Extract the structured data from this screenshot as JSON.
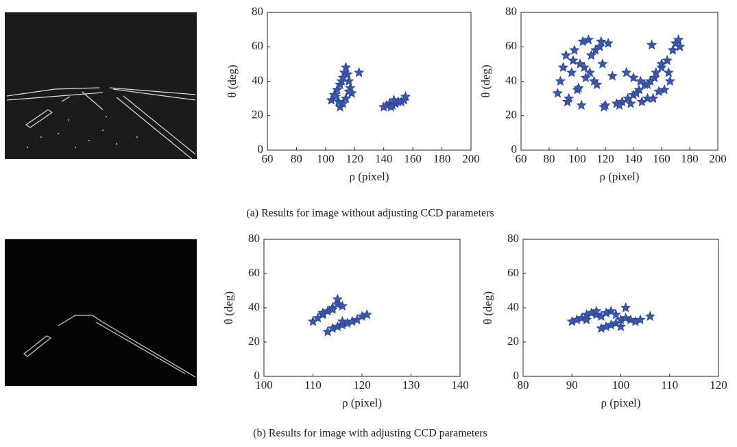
{
  "chart_data": [
    {
      "type": "scatter",
      "x_label": "ρ (pixel)",
      "y_label": "θ (deg)",
      "color": "#3b58a8",
      "xlim": [
        60,
        200
      ],
      "xticks": [
        60,
        80,
        100,
        120,
        140,
        160,
        180,
        200
      ],
      "ylim": [
        0,
        80
      ],
      "yticks": [
        0,
        20,
        40,
        60,
        80
      ],
      "x": [
        104,
        106,
        108,
        110,
        111,
        112,
        113,
        114,
        115,
        116,
        117,
        118,
        110,
        112,
        114,
        116,
        109,
        107,
        123,
        140,
        142,
        144,
        146,
        148,
        150,
        152,
        154,
        155,
        145,
        147
      ],
      "y": [
        29,
        32,
        35,
        38,
        40,
        42,
        45,
        48,
        44,
        40,
        36,
        33,
        25,
        27,
        30,
        34,
        28,
        31,
        45,
        25,
        26,
        27,
        26,
        27,
        28,
        28,
        29,
        31,
        25,
        29
      ]
    },
    {
      "type": "scatter",
      "x_label": "ρ (pixel)",
      "y_label": "θ (deg)",
      "color": "#3b58a8",
      "xlim": [
        60,
        200
      ],
      "xticks": [
        60,
        80,
        100,
        120,
        140,
        160,
        180,
        200
      ],
      "ylim": [
        0,
        80
      ],
      "yticks": [
        0,
        20,
        40,
        60,
        80
      ],
      "x": [
        86,
        88,
        90,
        92,
        94,
        96,
        98,
        100,
        102,
        104,
        106,
        108,
        110,
        112,
        114,
        116,
        118,
        120,
        122,
        125,
        93,
        97,
        101,
        105,
        109,
        113,
        117,
        103,
        119,
        128,
        132,
        136,
        140,
        144,
        148,
        152,
        156,
        160,
        164,
        168,
        170,
        172,
        173,
        135,
        140,
        145,
        150,
        155,
        160,
        165,
        130,
        138,
        146,
        154,
        162,
        153,
        142,
        150,
        158,
        166
      ],
      "y": [
        33,
        40,
        48,
        55,
        30,
        45,
        58,
        35,
        50,
        63,
        42,
        64,
        55,
        40,
        38,
        60,
        50,
        26,
        62,
        43,
        28,
        52,
        36,
        48,
        45,
        58,
        63,
        26,
        25,
        27,
        28,
        30,
        32,
        35,
        38,
        40,
        45,
        48,
        52,
        58,
        62,
        64,
        60,
        45,
        42,
        40,
        38,
        42,
        50,
        45,
        26,
        27,
        28,
        30,
        35,
        61,
        33,
        30,
        34,
        40
      ]
    },
    {
      "type": "scatter",
      "x_label": "ρ (pixel)",
      "y_label": "θ (deg)",
      "color": "#3b58a8",
      "xlim": [
        100,
        140
      ],
      "xticks": [
        100,
        110,
        120,
        130,
        140
      ],
      "ylim": [
        0,
        80
      ],
      "yticks": [
        0,
        20,
        40,
        60,
        80
      ],
      "x": [
        110,
        111,
        112,
        113,
        114,
        115,
        115,
        116,
        113,
        114,
        115,
        116,
        117,
        118,
        119,
        120,
        121,
        112,
        114,
        116
      ],
      "y": [
        32,
        34,
        36,
        38,
        40,
        42,
        45,
        41,
        26,
        28,
        29,
        30,
        31,
        32,
        33,
        35,
        36,
        37,
        39,
        32
      ]
    },
    {
      "type": "scatter",
      "x_label": "ρ (pixel)",
      "y_label": "θ (deg)",
      "color": "#3b58a8",
      "xlim": [
        80,
        120
      ],
      "xticks": [
        80,
        90,
        100,
        110,
        120
      ],
      "ylim": [
        0,
        80
      ],
      "yticks": [
        0,
        20,
        40,
        60,
        80
      ],
      "x": [
        90,
        91,
        92,
        93,
        94,
        95,
        96,
        97,
        98,
        99,
        96,
        97,
        98,
        99,
        100,
        101,
        102,
        103,
        104,
        106,
        101,
        95,
        100,
        93
      ],
      "y": [
        32,
        33,
        34,
        36,
        37,
        36,
        35,
        37,
        38,
        36,
        28,
        29,
        30,
        31,
        33,
        34,
        33,
        32,
        33,
        35,
        40,
        38,
        29,
        33
      ]
    }
  ],
  "captions": [
    "(a)   Results for image without adjusting CCD parameters",
    "(b)  Results for image with adjusting CCD parameters"
  ]
}
